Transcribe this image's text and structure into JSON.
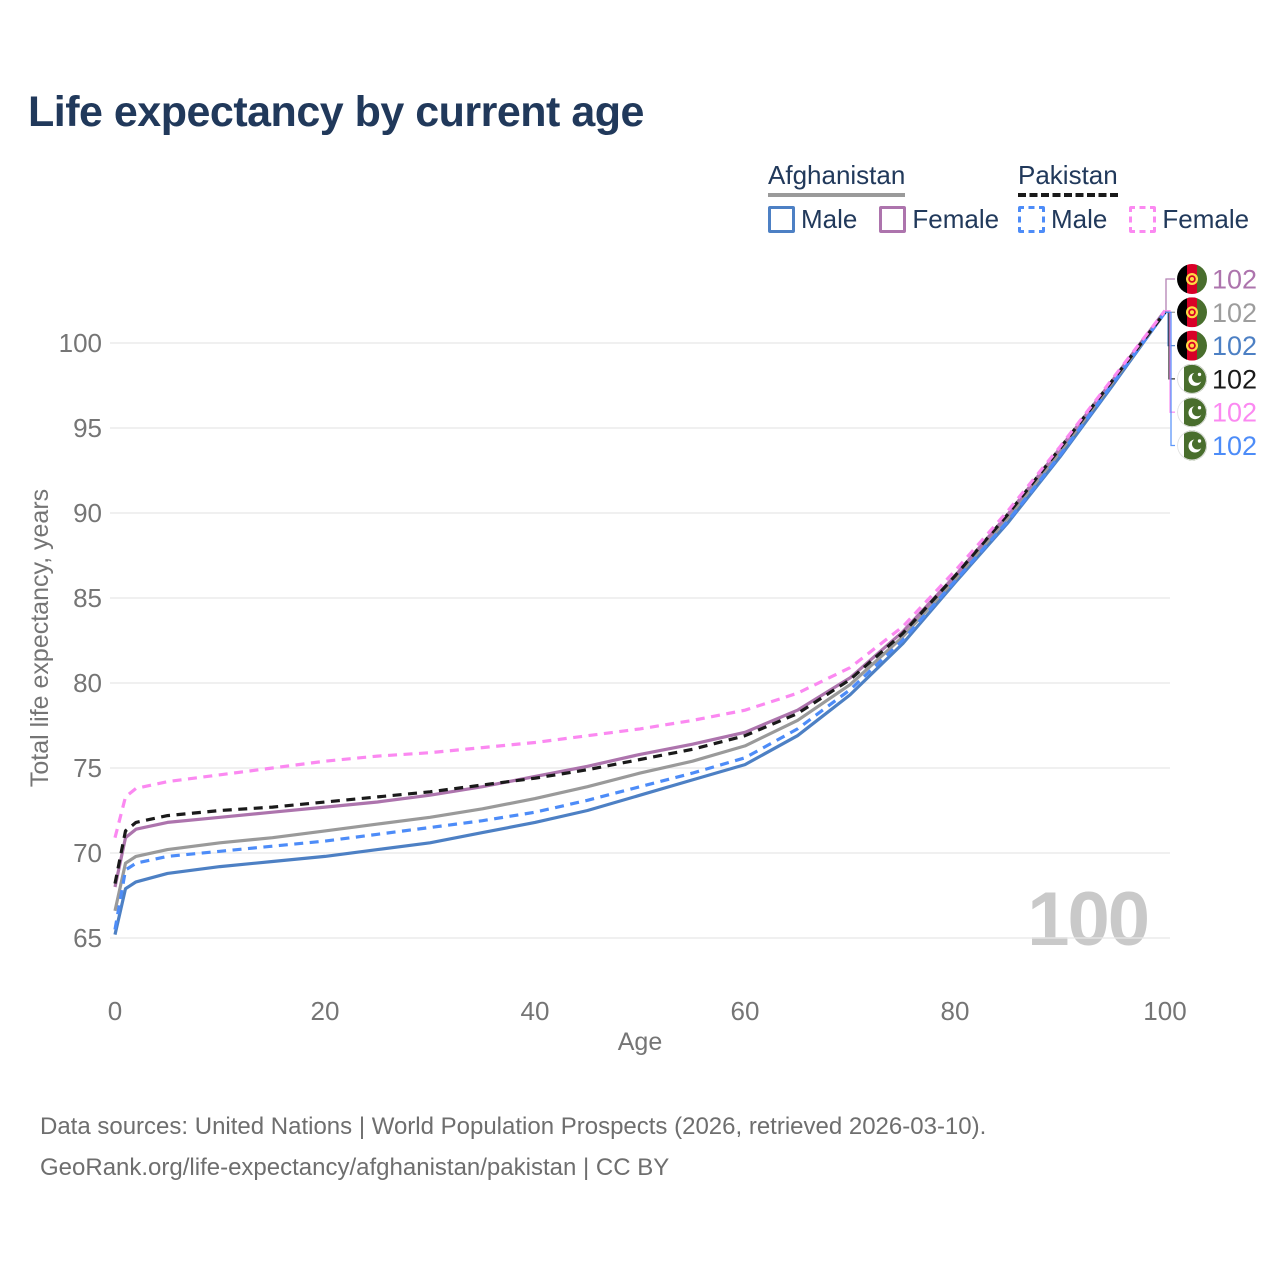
{
  "title": "Life expectancy by current age",
  "watermark": "100",
  "legend": {
    "groups": [
      {
        "label": "Afghanistan",
        "underline_color": "#9a9a9a",
        "underline_style": "solid",
        "items": [
          {
            "label": "Male",
            "color": "#4d80c4",
            "dashed": false
          },
          {
            "label": "Female",
            "color": "#ad74ad",
            "dashed": false
          }
        ]
      },
      {
        "label": "Pakistan",
        "underline_color": "#1a1a1a",
        "underline_style": "dashed",
        "items": [
          {
            "label": "Male",
            "color": "#4d8cf8",
            "dashed": true
          },
          {
            "label": "Female",
            "color": "#fb89f1",
            "dashed": true
          }
        ]
      }
    ]
  },
  "footer": {
    "line1": "Data sources: United Nations | World Population Prospects (2026, retrieved 2026-03-10).",
    "line2": "GeoRank.org/life-expectancy/afghanistan/pakistan | CC BY"
  },
  "chart_data": {
    "type": "line",
    "title": "Life expectancy by current age",
    "xlabel": "Age",
    "ylabel": "Total life expectancy, years",
    "xlim": [
      0,
      100
    ],
    "ylim": [
      64,
      103
    ],
    "x_ticks": [
      0,
      20,
      40,
      60,
      80,
      100
    ],
    "y_ticks": [
      65,
      70,
      75,
      80,
      85,
      90,
      95,
      100
    ],
    "grid": "horizontal",
    "legend_position": "top-right",
    "x": [
      0,
      1,
      2,
      5,
      10,
      15,
      20,
      25,
      30,
      35,
      40,
      45,
      50,
      55,
      60,
      65,
      70,
      75,
      80,
      85,
      90,
      95,
      100
    ],
    "series": [
      {
        "id": "afghanistan-male",
        "country": "Afghanistan",
        "sex": "Male",
        "style": "solid",
        "color": "#4d80c4",
        "label_color": "#4d80c4",
        "flag": "afghanistan",
        "end_label": "102",
        "label_slot": 2,
        "values": [
          65.2,
          67.9,
          68.3,
          68.8,
          69.2,
          69.5,
          69.8,
          70.2,
          70.6,
          71.2,
          71.8,
          72.5,
          73.4,
          74.3,
          75.2,
          76.9,
          79.3,
          82.3,
          85.9,
          89.4,
          93.3,
          97.5,
          101.8
        ]
      },
      {
        "id": "afghanistan-both",
        "country": "Afghanistan",
        "sex": "Both sexes",
        "style": "solid",
        "color": "#9a9a9a",
        "label_color": "#9d9d9d",
        "flag": "afghanistan",
        "end_label": "102",
        "label_slot": 1,
        "values": [
          66.6,
          69.4,
          69.8,
          70.2,
          70.6,
          70.9,
          71.3,
          71.7,
          72.1,
          72.6,
          73.2,
          73.9,
          74.7,
          75.4,
          76.3,
          77.8,
          79.9,
          82.7,
          86.1,
          89.7,
          93.6,
          97.7,
          101.8
        ]
      },
      {
        "id": "afghanistan-female",
        "country": "Afghanistan",
        "sex": "Female",
        "style": "solid",
        "color": "#ad74ad",
        "label_color": "#ad74ad",
        "flag": "afghanistan",
        "end_label": "102",
        "label_slot": 0,
        "values": [
          68.0,
          70.9,
          71.4,
          71.8,
          72.1,
          72.4,
          72.7,
          73.0,
          73.4,
          73.9,
          74.5,
          75.1,
          75.8,
          76.4,
          77.1,
          78.4,
          80.3,
          83.0,
          86.3,
          89.9,
          93.8,
          97.8,
          101.9
        ]
      },
      {
        "id": "pakistan-male",
        "country": "Pakistan",
        "sex": "Male",
        "style": "dashed",
        "color": "#4d8cf8",
        "label_color": "#4d8cf8",
        "flag": "pakistan",
        "end_label": "102",
        "label_slot": 5,
        "values": [
          65.5,
          69.0,
          69.4,
          69.8,
          70.1,
          70.4,
          70.7,
          71.1,
          71.5,
          71.9,
          72.4,
          73.1,
          73.9,
          74.7,
          75.6,
          77.3,
          79.6,
          82.5,
          86.0,
          89.5,
          93.4,
          97.6,
          101.8
        ]
      },
      {
        "id": "pakistan-both",
        "country": "Pakistan",
        "sex": "Both sexes",
        "style": "dashed",
        "color": "#1a1a1a",
        "label_color": "#1a1a1a",
        "flag": "pakistan",
        "end_label": "102",
        "label_slot": 3,
        "values": [
          68.2,
          71.3,
          71.8,
          72.2,
          72.5,
          72.7,
          73.0,
          73.3,
          73.6,
          74.0,
          74.4,
          74.9,
          75.5,
          76.1,
          76.9,
          78.2,
          80.2,
          82.9,
          86.3,
          89.9,
          93.8,
          97.8,
          101.8
        ]
      },
      {
        "id": "pakistan-female",
        "country": "Pakistan",
        "sex": "Female",
        "style": "dashed",
        "color": "#fb89f1",
        "label_color": "#fb89f1",
        "flag": "pakistan",
        "end_label": "102",
        "label_slot": 4,
        "values": [
          70.9,
          73.3,
          73.8,
          74.2,
          74.6,
          75.0,
          75.4,
          75.7,
          75.9,
          76.2,
          76.5,
          76.9,
          77.3,
          77.8,
          78.4,
          79.4,
          80.9,
          83.3,
          86.6,
          90.1,
          93.9,
          97.9,
          101.9
        ]
      }
    ]
  }
}
